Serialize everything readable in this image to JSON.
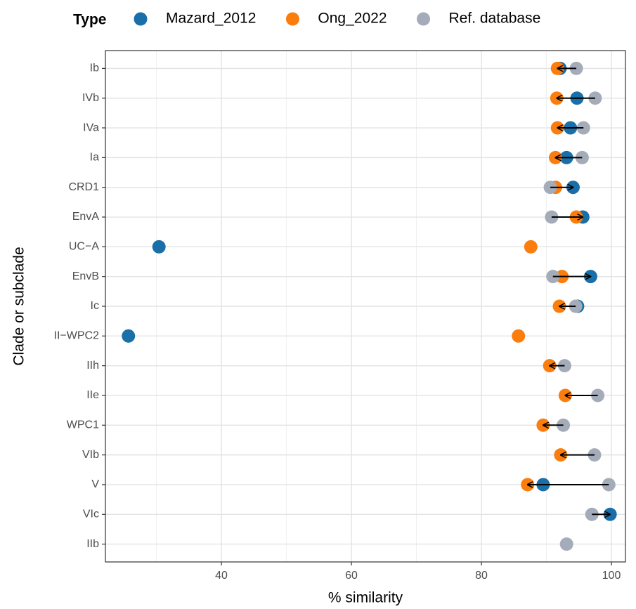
{
  "chart_data": {
    "type": "dot",
    "legend_title": "Type",
    "x_label": "% similarity",
    "y_label": "Clade or subclade",
    "categories": [
      "Ib",
      "IVb",
      "IVa",
      "Ia",
      "CRD1",
      "EnvA",
      "UC−A",
      "EnvB",
      "Ic",
      "II−WPC2",
      "IIh",
      "IIe",
      "WPC1",
      "VIb",
      "V",
      "VIc",
      "IIb"
    ],
    "series": [
      {
        "name": "Mazard_2012",
        "color": "#1a6fa8",
        "values": [
          92.1,
          94.7,
          93.7,
          93.1,
          94.1,
          95.6,
          30.4,
          96.8,
          94.8,
          25.7,
          null,
          null,
          null,
          null,
          89.5,
          99.8,
          null
        ]
      },
      {
        "name": "Ong_2022",
        "color": "#fb7d0d",
        "values": [
          91.7,
          91.6,
          91.7,
          91.4,
          91.4,
          94.6,
          87.6,
          92.4,
          92.0,
          85.7,
          90.5,
          92.9,
          89.5,
          92.2,
          87.1,
          null,
          null
        ]
      },
      {
        "name": "Ref. database",
        "color": "#a5acb9",
        "values": [
          94.6,
          97.5,
          95.7,
          95.5,
          90.6,
          90.8,
          null,
          91.0,
          94.5,
          null,
          92.8,
          97.9,
          92.6,
          97.4,
          99.6,
          97.0,
          93.1
        ]
      }
    ],
    "xlim": [
      22.16,
      102.16
    ],
    "xticks": [
      40,
      60,
      80,
      100
    ],
    "grid": true,
    "legend_position": "top"
  }
}
